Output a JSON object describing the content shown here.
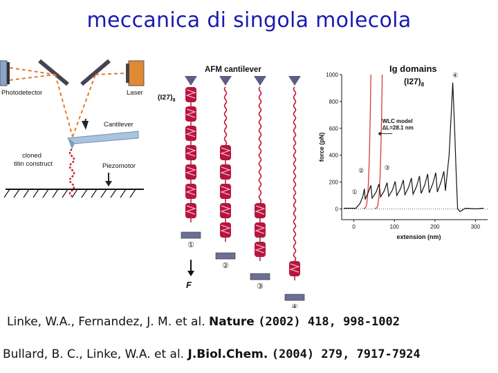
{
  "slide": {
    "title": "meccanica di singola molecola"
  },
  "setup": {
    "photodetector": "Photodetector",
    "laser": "Laser",
    "cantilever": "Cantilever",
    "construct": "cloned\ntitin construct",
    "piezomotor": "Piezomotor"
  },
  "unfolding": {
    "title": "AFM cantilever",
    "domain_label": "(I27)",
    "domain_subscript": "8",
    "force_label": "F",
    "stages": [
      "①",
      "②",
      "③",
      "④"
    ]
  },
  "chart": {
    "title": "Ig domains",
    "subtitle": "(I27)",
    "subtitle_sub": "8",
    "annotation_1": "WLC model",
    "annotation_2": "ΔL=28.1 nm",
    "markers": [
      "①",
      "②",
      "③",
      "④"
    ]
  },
  "chart_data": {
    "type": "line",
    "xlabel": "extension (nm)",
    "ylabel": "force (pN)",
    "xlim": [
      -30,
      330
    ],
    "ylim": [
      -80,
      1000
    ],
    "xticks": [
      "0",
      "100",
      "200",
      "300"
    ],
    "yticks": [
      "0",
      "200",
      "400",
      "600",
      "800",
      "1000"
    ],
    "series": [
      {
        "values": [
          [
            -25,
            5
          ],
          [
            5,
            5
          ],
          [
            15,
            40
          ],
          [
            22,
            90
          ],
          [
            26,
            150
          ],
          [
            28,
            70
          ],
          [
            35,
            120
          ],
          [
            42,
            175
          ],
          [
            45,
            80
          ],
          [
            55,
            125
          ],
          [
            62,
            185
          ],
          [
            66,
            90
          ],
          [
            75,
            135
          ],
          [
            82,
            195
          ],
          [
            86,
            95
          ],
          [
            95,
            140
          ],
          [
            102,
            205
          ],
          [
            106,
            100
          ],
          [
            115,
            150
          ],
          [
            122,
            215
          ],
          [
            126,
            105
          ],
          [
            135,
            160
          ],
          [
            142,
            230
          ],
          [
            146,
            110
          ],
          [
            155,
            170
          ],
          [
            162,
            245
          ],
          [
            166,
            115
          ],
          [
            175,
            180
          ],
          [
            182,
            260
          ],
          [
            186,
            120
          ],
          [
            195,
            190
          ],
          [
            202,
            270
          ],
          [
            206,
            125
          ],
          [
            215,
            200
          ],
          [
            222,
            280
          ],
          [
            226,
            135
          ],
          [
            235,
            400
          ],
          [
            240,
            700
          ],
          [
            244,
            940
          ],
          [
            248,
            650
          ],
          [
            252,
            300
          ],
          [
            256,
            0
          ],
          [
            262,
            -20
          ],
          [
            275,
            5
          ],
          [
            300,
            0
          ],
          [
            320,
            5
          ]
        ]
      }
    ]
  },
  "references": [
    {
      "authors": "Linke, W.A., Fernandez, J. M. et al.",
      "journal": "Nature",
      "citation": "(2002) 418, 998-1002"
    },
    {
      "authors": "Bullard, B. C., Linke, W.A. et al.",
      "journal": "J.Biol.Chem.",
      "citation": "(2004) 279, 7917-7924"
    }
  ]
}
